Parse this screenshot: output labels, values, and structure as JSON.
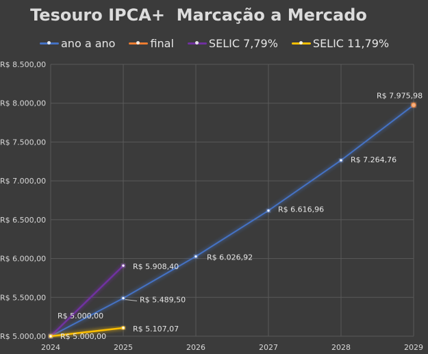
{
  "chart_data": {
    "type": "line",
    "title": "Tesouro IPCA+  Marcação a Mercado",
    "xlabel": "",
    "ylabel": "",
    "x": [
      "2024",
      "2025",
      "2026",
      "2027",
      "2028",
      "2029"
    ],
    "y_ticks": [
      "R$ 5.000,00",
      "R$ 5.500,00",
      "R$ 6.000,00",
      "R$ 6.500,00",
      "R$ 7.000,00",
      "R$ 7.500,00",
      "R$ 8.000,00",
      "R$ 8.500,00"
    ],
    "ylim": [
      5000,
      8500
    ],
    "grid": true,
    "legend": "top",
    "series": [
      {
        "name": "ano a ano",
        "color": "#4472c4",
        "points": [
          {
            "x": "2024",
            "y": 5000.0,
            "label": "R$ 5.000,00"
          },
          {
            "x": "2025",
            "y": 5489.5,
            "label": "R$ 5.489,50"
          },
          {
            "x": "2026",
            "y": 6026.92,
            "label": "R$ 6.026,92"
          },
          {
            "x": "2027",
            "y": 6616.96,
            "label": "R$ 6.616,96"
          },
          {
            "x": "2028",
            "y": 7264.76,
            "label": "R$ 7.264,76"
          },
          {
            "x": "2029",
            "y": 7975.98,
            "label": ""
          }
        ]
      },
      {
        "name": "final",
        "color": "#ed7d31",
        "points": [
          {
            "x": "2029",
            "y": 7975.98,
            "label": "R$ 7.975,98"
          }
        ]
      },
      {
        "name": "SELIC 7,79%",
        "color": "#7030a0",
        "points": [
          {
            "x": "2024",
            "y": 5000.0,
            "label": "R$ 5.000,00"
          },
          {
            "x": "2025",
            "y": 5908.4,
            "label": "R$ 5.908,40"
          }
        ]
      },
      {
        "name": "SELIC 11,79%",
        "color": "#ffc000",
        "points": [
          {
            "x": "2024",
            "y": 5000.0,
            "label": ""
          },
          {
            "x": "2025",
            "y": 5107.07,
            "label": "R$ 5.107,07"
          }
        ]
      }
    ]
  }
}
